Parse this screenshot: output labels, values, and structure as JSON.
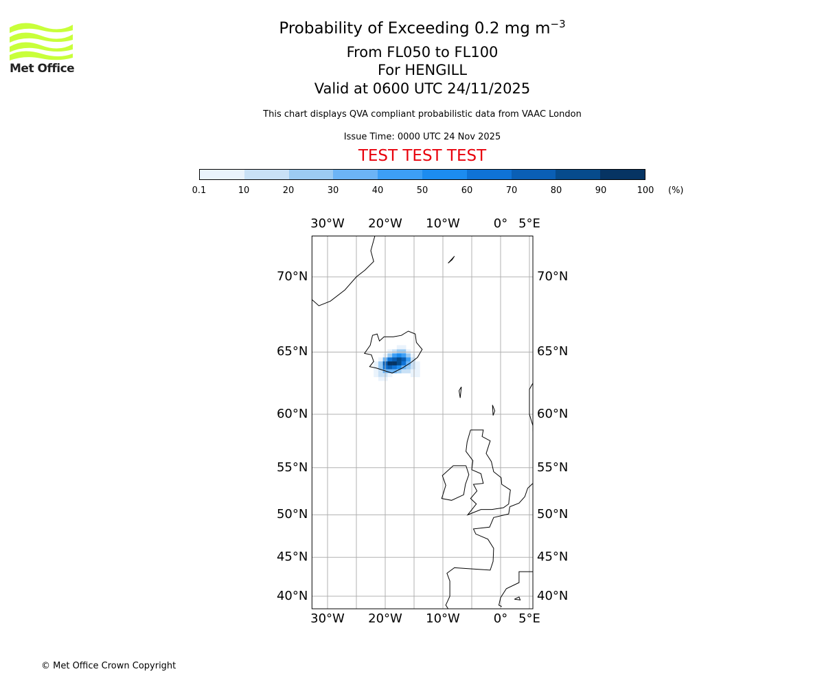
{
  "logo": {
    "text": "Met Office",
    "color": "#c8ff3a"
  },
  "header": {
    "title": "Probability of Exceeding 0.2 mg m",
    "title_exponent": "−3",
    "level_range": "From FL050 to FL100",
    "location": "For HENGILL",
    "valid_time": "Valid at 0600 UTC 24/11/2025",
    "description": "This chart displays QVA compliant probabilistic data from VAAC London",
    "issue_time": "Issue Time: 0000 UTC 24 Nov 2025",
    "test_banner": "TEST TEST TEST",
    "test_color": "#e8000b"
  },
  "colorbar": {
    "ticks": [
      "0.1",
      "10",
      "20",
      "30",
      "40",
      "50",
      "60",
      "70",
      "80",
      "90",
      "100"
    ],
    "unit": "(%)",
    "colors": [
      "#eaf3fc",
      "#c9e1f6",
      "#9ccbf2",
      "#6cb4f5",
      "#3d9ff5",
      "#1c8cf0",
      "#0f73d6",
      "#0a5fb5",
      "#064b8c",
      "#063463"
    ]
  },
  "chart_data": {
    "type": "heatmap",
    "projection": "mercator",
    "lon_range": [
      -32.7,
      5.6
    ],
    "lat_range": [
      38.3,
      72.3
    ],
    "lon_ticks": [
      {
        "v": -30,
        "label": "30°W"
      },
      {
        "v": -20,
        "label": "20°W"
      },
      {
        "v": -10,
        "label": "10°W"
      },
      {
        "v": 0,
        "label": "0°"
      },
      {
        "v": 5,
        "label": "5°E"
      }
    ],
    "lon_grid": [
      -30,
      -25,
      -20,
      -15,
      -10,
      -5,
      0,
      5
    ],
    "lat_ticks": [
      {
        "v": 70,
        "label": "70°N"
      },
      {
        "v": 65,
        "label": "65°N"
      },
      {
        "v": 60,
        "label": "60°N"
      },
      {
        "v": 55,
        "label": "55°N"
      },
      {
        "v": 50,
        "label": "50°N"
      },
      {
        "v": 45,
        "label": "45°N"
      },
      {
        "v": 40,
        "label": "40°N"
      }
    ],
    "grid": true,
    "probability_grid": {
      "lon0": -22.0,
      "lat0": 65.5,
      "dlon": 0.8,
      "dlat": -0.3,
      "values": [
        [
          0,
          0,
          0,
          0,
          0,
          5,
          5,
          0,
          0,
          0
        ],
        [
          0,
          0,
          0,
          5,
          15,
          25,
          20,
          5,
          0,
          0
        ],
        [
          0,
          0,
          5,
          20,
          40,
          55,
          45,
          25,
          5,
          0
        ],
        [
          0,
          5,
          30,
          60,
          75,
          85,
          70,
          40,
          10,
          0
        ],
        [
          5,
          20,
          75,
          95,
          90,
          80,
          60,
          35,
          10,
          5
        ],
        [
          5,
          25,
          60,
          70,
          65,
          50,
          35,
          20,
          10,
          5
        ],
        [
          5,
          15,
          30,
          35,
          30,
          20,
          15,
          10,
          5,
          5
        ],
        [
          5,
          10,
          10,
          5,
          0,
          0,
          0,
          0,
          5,
          5
        ],
        [
          0,
          5,
          5,
          0,
          0,
          0,
          0,
          0,
          0,
          0
        ]
      ]
    }
  },
  "footer": {
    "copyright": "© Met Office Crown Copyright"
  }
}
